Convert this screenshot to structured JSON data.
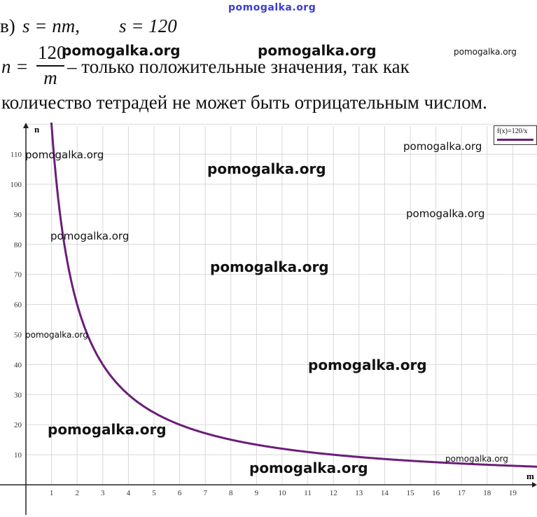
{
  "watermark_top": "pomogalka.org",
  "line1": {
    "part_label": "в)",
    "formula1": "s = nm,",
    "formula2": "s = 120"
  },
  "line2": {
    "lhs": "n =",
    "numerator": "120",
    "denominator": "m",
    "text": "– только положительные значения, так как"
  },
  "line3": {
    "text": "количество тетрадей не может быть отрицательным числом."
  },
  "watermarks": [
    "pomogalka.org",
    "pomogalka.org",
    "pomogalka.org",
    "pomogalka.org",
    "pomogalka.org",
    "pomogalka.org",
    "pomogalka.org",
    "pomogalka.org",
    "pomogalka.org",
    "pomogalka.org",
    "pomogalka.org",
    "pomogalka.org",
    "pomogalka.org",
    "pomogalka.org"
  ],
  "chart_data": {
    "type": "line",
    "function": "f(x)=120/x",
    "legend": "f(x)=120/x",
    "legend_position": "top-right",
    "xlabel": "m",
    "ylabel": "n",
    "xlim": [
      0,
      20
    ],
    "ylim": [
      0,
      120
    ],
    "grid": true,
    "x_ticks": [
      1,
      2,
      3,
      4,
      5,
      6,
      7,
      8,
      9,
      10,
      11,
      12,
      13,
      14,
      15,
      16,
      17,
      18,
      19
    ],
    "y_ticks": [
      10,
      20,
      30,
      40,
      50,
      60,
      70,
      80,
      90,
      100,
      110
    ],
    "series": [
      {
        "name": "f(x)=120/x",
        "color": "#6b1e78",
        "x": [
          1.05,
          1.5,
          2,
          3,
          4,
          5,
          6,
          8,
          10,
          12,
          15,
          20
        ],
        "y": [
          114.3,
          80,
          60,
          40,
          30,
          24,
          20,
          15,
          12,
          10,
          8,
          6
        ]
      }
    ]
  }
}
